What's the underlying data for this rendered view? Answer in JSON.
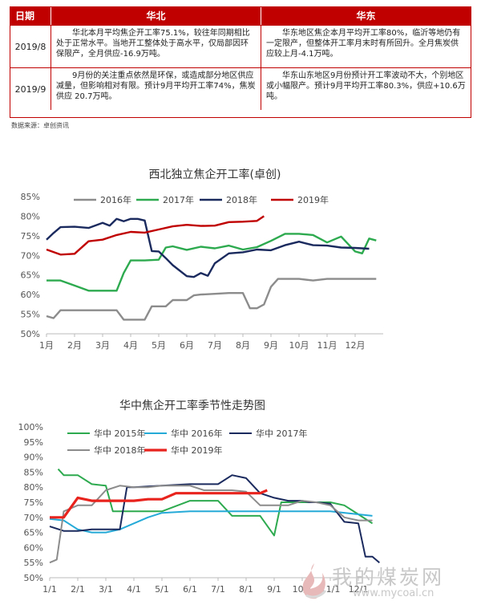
{
  "table": {
    "headers": {
      "date": "日期",
      "north": "华北",
      "east": "华东"
    },
    "rows": [
      {
        "date": "2019/8",
        "north": "华北本月平均焦企开工率75.1%，较往年同期相比处于正常水平。当地开工整体处于高水平，仅局部因环保限产，全月供应-16.9万吨。",
        "east": "华东地区焦企本月平均开工率80%，临沂等地仍有一定限产，但整体开工率月末时有所回升。全月焦炭供应较上月-4.1万吨。"
      },
      {
        "date": "2019/9",
        "north": "9月份的关注重点依然是环保，或造成部分地区供应减量，但影响相对有限。预计9月平均开工率74%，焦炭供应 20.7万吨。",
        "east": "华东山东地区9月份预计开工率波动不大，个别地区或小幅限产。预计9月平均开工率80.3%，供应+10.6万吨。"
      }
    ],
    "source": "数据来源：卓创资讯"
  },
  "chart_data": [
    {
      "type": "line",
      "title": "西北独立焦企开工率(卓创)",
      "x_range": [
        0,
        12
      ],
      "x_tick_labels": [
        "1月",
        "2月",
        "3月",
        "4月",
        "5月",
        "6月",
        "7月",
        "8月",
        "9月",
        "10月",
        "11月",
        "12月"
      ],
      "x_tick_positions": [
        0,
        1,
        2,
        3,
        4,
        5,
        6,
        7,
        8,
        9,
        10,
        11
      ],
      "ylim": [
        50,
        85
      ],
      "y_ticks": [
        50,
        55,
        60,
        65,
        70,
        75,
        80,
        85
      ],
      "y_format": "percent",
      "grid": false,
      "legend": "top",
      "series": [
        {
          "name": "2016年",
          "color": "#8c8c8c",
          "x": [
            0,
            0.25,
            0.5,
            1,
            2,
            2.5,
            2.75,
            3,
            3.25,
            3.5,
            3.75,
            4,
            4.25,
            4.5,
            5,
            5.25,
            5.5,
            6,
            6.5,
            7,
            7.25,
            7.5,
            7.75,
            8,
            8.25,
            8.5,
            9,
            9.5,
            10,
            11,
            11.75
          ],
          "y": [
            54.5,
            54,
            56,
            56,
            56,
            56,
            53.6,
            53.6,
            53.6,
            53.6,
            57,
            57,
            57,
            58.6,
            58.6,
            59.8,
            60,
            60.2,
            60.4,
            60.4,
            56.5,
            56.5,
            57.5,
            62,
            64,
            64,
            64,
            63.6,
            64,
            64,
            64
          ]
        },
        {
          "name": "2017年",
          "color": "#2daa4f",
          "x": [
            0,
            0.5,
            1,
            1.5,
            2,
            2.5,
            2.75,
            3,
            3.5,
            4,
            4.25,
            4.5,
            5,
            5.5,
            6,
            6.5,
            7,
            7.5,
            8,
            8.5,
            9,
            9.5,
            10,
            10.5,
            11,
            11.25,
            11.5,
            11.75
          ],
          "y": [
            63.6,
            63.6,
            62.3,
            61,
            61,
            61,
            65.5,
            68.7,
            68.7,
            68.9,
            72,
            72.3,
            71.4,
            72.2,
            71.8,
            72.5,
            71.5,
            72.1,
            73.7,
            75.5,
            75.5,
            75.2,
            73.3,
            74.8,
            71,
            70.5,
            74.3,
            73.8
          ]
        },
        {
          "name": "2018年",
          "color": "#1b2a5e",
          "x": [
            0,
            0.25,
            0.5,
            1,
            1.5,
            2,
            2.25,
            2.5,
            2.75,
            3,
            3.25,
            3.5,
            3.75,
            4,
            4.25,
            4.5,
            5,
            5.25,
            5.5,
            5.75,
            6,
            6.5,
            7,
            7.5,
            8,
            8.5,
            9,
            9.5,
            10,
            10.5,
            11,
            11.5
          ],
          "y": [
            74,
            75.7,
            77.2,
            77.3,
            77,
            78.3,
            77.6,
            79.3,
            78.7,
            79.3,
            79.3,
            78.9,
            71.1,
            71,
            69.3,
            67.5,
            64.7,
            64.5,
            65.5,
            64.8,
            68,
            70.5,
            70.8,
            71.5,
            71.3,
            72.6,
            73.5,
            72.6,
            72.5,
            72,
            71.9,
            71.7
          ]
        },
        {
          "name": "2019年",
          "color": "#c00000",
          "x": [
            0,
            0.5,
            1,
            1.5,
            2,
            2.5,
            3,
            3.5,
            4,
            4.5,
            5,
            5.5,
            6,
            6.5,
            7,
            7.5,
            7.75
          ],
          "y": [
            71.5,
            70.2,
            70.4,
            73.6,
            74,
            75.2,
            76,
            75.8,
            76.6,
            77.4,
            77.8,
            77.5,
            77.6,
            78.5,
            78.6,
            78.8,
            80
          ]
        }
      ]
    },
    {
      "type": "line",
      "title": "华中焦企开工率季节性走势图",
      "x_range": [
        0,
        12
      ],
      "x_tick_labels": [
        "1/1",
        "2/1",
        "3/1",
        "4/1",
        "5/1",
        "6/1",
        "7/1",
        "8/1",
        "9/1",
        "10/1",
        "11/1",
        "12/1"
      ],
      "x_tick_positions": [
        0,
        1,
        2,
        3,
        4,
        5,
        6,
        7,
        8,
        9,
        10,
        11
      ],
      "ylim": [
        50,
        100
      ],
      "y_ticks": [
        50,
        55,
        60,
        65,
        70,
        75,
        80,
        85,
        90,
        95,
        100
      ],
      "y_format": "percent",
      "grid": false,
      "legend": "top",
      "series": [
        {
          "name": "华中 2015年",
          "color": "#2daa4f",
          "x": [
            0.3,
            0.5,
            1,
            1.5,
            2,
            2.25,
            3,
            3.25,
            4,
            5,
            5.5,
            6,
            6.5,
            7,
            7.5,
            8,
            8.25,
            8.5,
            9,
            9.5,
            10,
            10.5,
            11,
            11.5
          ],
          "y": [
            86,
            84,
            84,
            81,
            80.5,
            72,
            72,
            72,
            72,
            75.5,
            75.5,
            75.5,
            70.5,
            70.5,
            70.5,
            64,
            75,
            75,
            75,
            75,
            75,
            74,
            71,
            68
          ]
        },
        {
          "name": "华中 2016年",
          "color": "#25aad8",
          "x": [
            0,
            0.5,
            1,
            1.5,
            2,
            2.5,
            3,
            3.5,
            4,
            5,
            6,
            7,
            8,
            9,
            10,
            11,
            11.5
          ],
          "y": [
            69.5,
            69,
            66,
            65,
            65,
            66,
            68,
            70,
            71.5,
            72,
            72,
            72,
            72,
            72,
            72,
            71,
            70.5
          ]
        },
        {
          "name": "华中 2017年",
          "color": "#1b2a5e",
          "x": [
            0,
            0.5,
            1,
            1.5,
            2,
            2.5,
            2.75,
            3,
            4,
            5,
            6,
            6.5,
            7,
            7.5,
            8,
            8.5,
            9,
            9.25,
            9.5,
            10,
            10.5,
            11,
            11.25,
            11.5,
            11.75
          ],
          "y": [
            67,
            65.5,
            65.5,
            66,
            66,
            66,
            80,
            80,
            80.5,
            81,
            81,
            84,
            83,
            78,
            76.5,
            75.5,
            75.5,
            75,
            75,
            74.5,
            68.5,
            68,
            57,
            57,
            55
          ]
        },
        {
          "name": "华中 2018年",
          "color": "#8c8c8c",
          "x": [
            0,
            0.25,
            0.5,
            1,
            1.5,
            2,
            2.5,
            3,
            3.5,
            4,
            4.5,
            5,
            5.5,
            6,
            6.5,
            7,
            7.5,
            8,
            8.5,
            9,
            9.5,
            10,
            10.5,
            11,
            11.5
          ],
          "y": [
            55,
            56,
            72,
            74,
            74,
            79,
            80.5,
            80,
            80,
            80.5,
            80.5,
            80.5,
            79,
            79,
            79,
            78.5,
            74,
            74,
            74,
            75.5,
            75,
            74,
            70,
            69,
            69
          ]
        },
        {
          "name": "华中 2019年",
          "color": "#e8231d",
          "x": [
            0,
            0.5,
            1,
            1.5,
            2,
            2.5,
            3,
            3.5,
            4,
            4.5,
            5,
            5.5,
            6,
            6.5,
            7,
            7.5,
            7.75
          ],
          "y": [
            70,
            70,
            76.5,
            75.5,
            75.5,
            75.5,
            75.5,
            76,
            76,
            78,
            78,
            78,
            78,
            78,
            78,
            78,
            79
          ]
        }
      ]
    }
  ],
  "watermark": {
    "text": "我的煤炭网",
    "url": "www.mycoal.cn",
    "logo_icon": "flame-logo-icon"
  }
}
